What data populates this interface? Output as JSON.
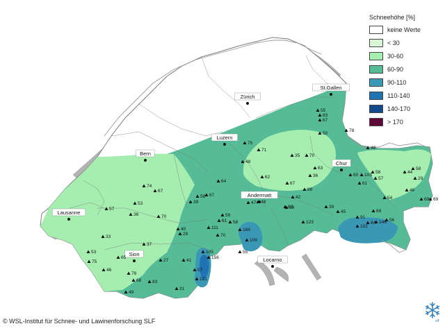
{
  "legend": {
    "title": "Schneehöhe [%]",
    "items": [
      {
        "label": "keine Werte",
        "color": "#ffffff"
      },
      {
        "label": "< 30",
        "color": "#d8f7d6"
      },
      {
        "label": "30-60",
        "color": "#a6eeb0"
      },
      {
        "label": "60-90",
        "color": "#55bc97"
      },
      {
        "label": "90-110",
        "color": "#3b98b5"
      },
      {
        "label": "110-140",
        "color": "#1f73b3"
      },
      {
        "label": "140-170",
        "color": "#134b8a"
      },
      {
        "label": "> 170",
        "color": "#5e0a38"
      }
    ]
  },
  "cities": [
    "St.Gallen",
    "Zürich",
    "Luzern",
    "Bern",
    "Chur",
    "Andermatt",
    "Lausanne",
    "Sion",
    "Locarno"
  ],
  "stations": [
    "55",
    "83",
    "67",
    "50",
    "78",
    "75",
    "71",
    "35",
    "70",
    "63",
    "36",
    "67",
    "62",
    "60",
    "103",
    "58",
    "57",
    "61",
    "54",
    "44",
    "58",
    "29",
    "48",
    "46",
    "69",
    "69",
    "74",
    "67",
    "53",
    "57",
    "36",
    "70",
    "39",
    "58",
    "67",
    "64",
    "48",
    "47",
    "48",
    "88",
    "42",
    "83",
    "89",
    "39",
    "45",
    "33",
    "37",
    "40",
    "29",
    "111",
    "70",
    "61",
    "59",
    "58",
    "169",
    "109",
    "102",
    "84",
    "146",
    "91",
    "69",
    "56",
    "53",
    "75",
    "65",
    "46",
    "78",
    "68",
    "83",
    "27",
    "41",
    "31",
    "105",
    "156",
    "57",
    "121",
    "49",
    "55",
    "123"
  ],
  "copyright": "© WSL-Institut für Schnee- und Lawinenforschung SLF",
  "logo_text": "slf"
}
